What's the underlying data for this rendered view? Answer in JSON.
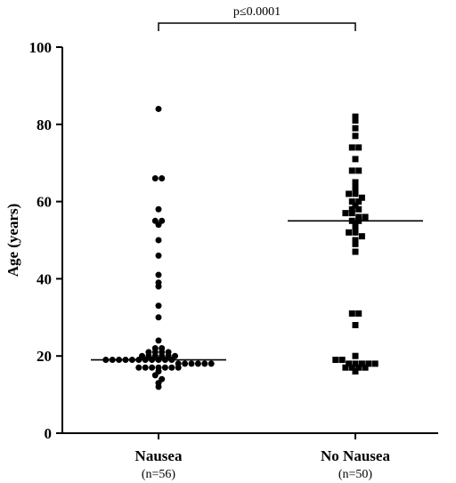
{
  "chart_data": {
    "type": "scatter",
    "subtype": "dot-plot-with-median",
    "title": "",
    "ylabel": "Age (years)",
    "ylim": [
      0,
      100
    ],
    "yticks": [
      0,
      20,
      40,
      60,
      80,
      100
    ],
    "grid": false,
    "significance": {
      "label": "p≤0.0001",
      "between": [
        "Nausea",
        "No Nausea"
      ]
    },
    "groups": [
      {
        "name": "Nausea",
        "n_label": "(n=56)",
        "marker": "circle",
        "median": 19,
        "values": [
          84,
          66,
          66,
          58,
          55,
          55,
          54,
          50,
          46,
          41,
          39,
          38,
          33,
          30,
          24,
          22,
          22,
          21,
          21,
          21,
          21,
          20,
          20,
          20,
          20,
          20,
          20,
          19,
          19,
          19,
          19,
          19,
          19,
          19,
          19,
          19,
          19,
          19,
          18,
          18,
          18,
          18,
          18,
          18,
          17,
          17,
          17,
          17,
          17,
          17,
          17,
          16,
          15,
          14,
          13,
          12
        ]
      },
      {
        "name": "No Nausea",
        "n_label": "(n=50)",
        "marker": "square",
        "median": 55,
        "values": [
          82,
          81,
          79,
          77,
          74,
          74,
          71,
          68,
          68,
          65,
          64,
          63,
          62,
          62,
          61,
          60,
          60,
          59,
          58,
          58,
          57,
          57,
          56,
          56,
          55,
          55,
          54,
          53,
          52,
          52,
          51,
          50,
          49,
          47,
          31,
          31,
          28,
          20,
          19,
          19,
          18,
          18,
          18,
          18,
          18,
          17,
          17,
          17,
          17,
          16
        ]
      }
    ]
  }
}
